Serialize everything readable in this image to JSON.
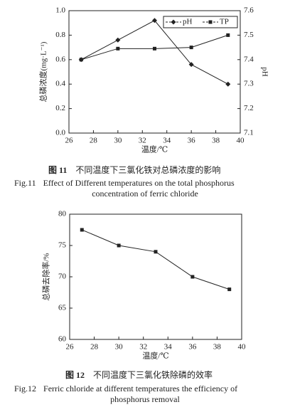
{
  "chart_data": [
    {
      "type": "line",
      "x": [
        27,
        30,
        33,
        36,
        39
      ],
      "xlim": [
        26,
        40
      ],
      "xticks": [
        26,
        28,
        30,
        32,
        34,
        36,
        38,
        40
      ],
      "ylim": [
        0,
        1
      ],
      "yticks": [
        {
          "value": 0,
          "label": "0.0"
        },
        0.2,
        0.4,
        0.6,
        0.8,
        {
          "value": 1,
          "label": "1.0"
        }
      ],
      "y2lim": [
        7.1,
        7.6
      ],
      "y2ticks": [
        7.1,
        7.2,
        7.3,
        7.4,
        7.5,
        7.6
      ],
      "xlabel": "温度/℃",
      "ylabel": "总磷浓度(mg·L⁻¹)",
      "y2label": "pH",
      "legend": "upper right",
      "series": [
        {
          "name": "pH",
          "color": "#222222",
          "marker": "diamond",
          "axis": "y2",
          "values": [
            7.4,
            7.48,
            7.56,
            7.38,
            7.3
          ]
        },
        {
          "name": "TP",
          "color": "#222222",
          "marker": "square",
          "values": [
            0.6,
            0.69,
            0.69,
            0.7,
            0.8
          ]
        }
      ]
    },
    {
      "type": "line",
      "x": [
        27,
        30,
        33,
        36,
        39
      ],
      "xlim": [
        26,
        40
      ],
      "xticks": [
        26,
        28,
        30,
        32,
        34,
        36,
        38,
        40
      ],
      "ylim": [
        60,
        80
      ],
      "yticks": [
        60,
        65,
        70,
        75,
        80
      ],
      "xlabel": "温度/℃",
      "ylabel": "总磷去除率/%",
      "series": [
        {
          "name": "总磷去除率",
          "color": "#222222",
          "marker": "square",
          "values": [
            77.5,
            75,
            74,
            70,
            68
          ]
        }
      ]
    }
  ],
  "captions": [
    {
      "cn_label": "图 11",
      "cn": "不同温度下三氯化铁对总磷浓度的影响",
      "en_label": "Fig.11",
      "en": [
        "Effect of Different temperatures on the total phosphorus",
        "concentration of ferric chloride"
      ]
    },
    {
      "cn_label": "图 12",
      "cn": "不同温度下三氯化铁除磷的效率",
      "en_label": "Fig.12",
      "en": [
        "Ferric chloride at different temperatures the efficiency of",
        "phosphorus removal"
      ]
    }
  ]
}
